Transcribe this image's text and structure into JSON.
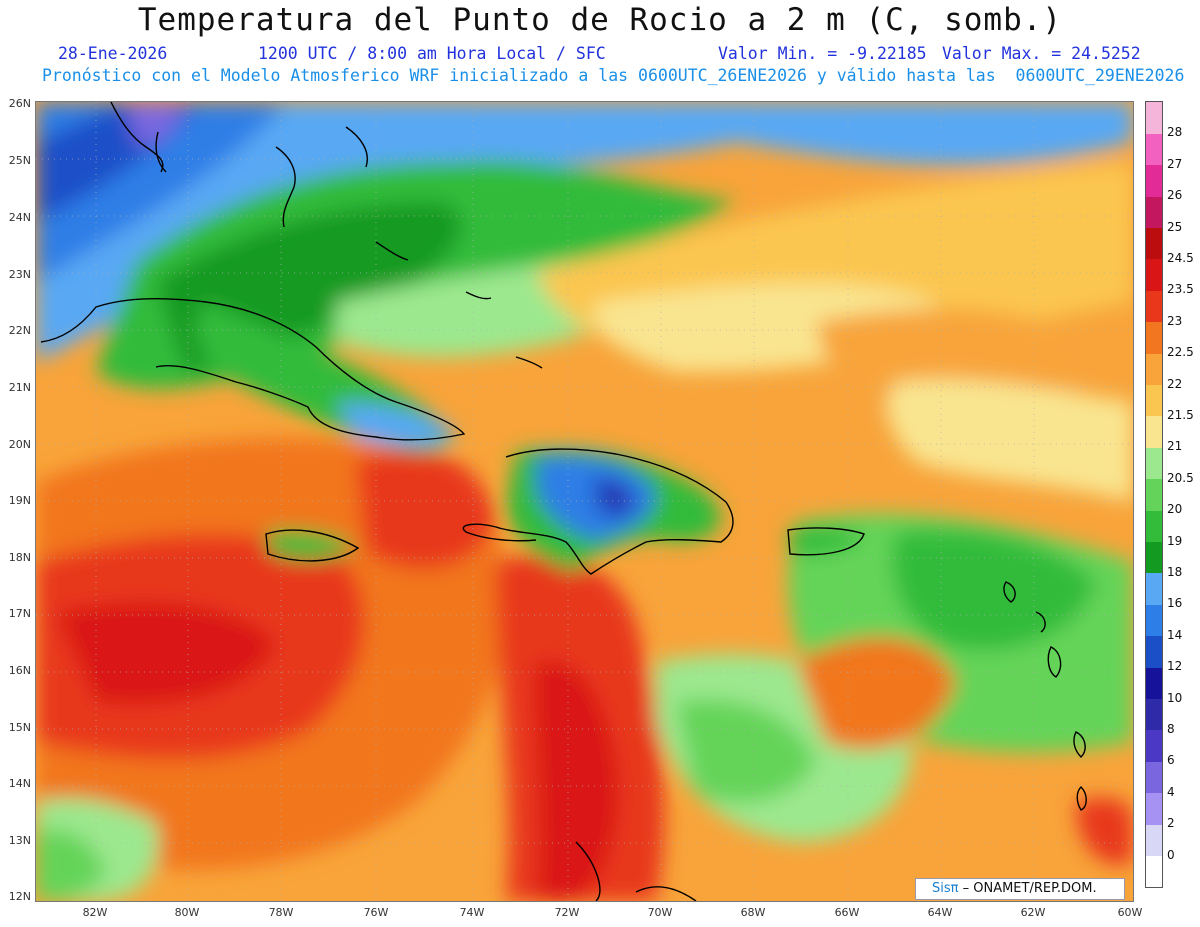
{
  "title": "Temperatura del Punto de Rocio a 2 m (C, somb.)",
  "date": "28-Ene-2026",
  "time_info": "1200 UTC / 8:00 am Hora Local / SFC",
  "min_value": "Valor Min. = -9.22185",
  "max_value": "Valor Max. = 24.5252",
  "model_info": "Pronóstico con el Modelo Atmosferico WRF inicializado a las 0600UTC_26ENE2026 y válido hasta las  0600UTC_29ENE2026",
  "logo": {
    "brand": "Sisπ",
    "text": "– ONAMET/REP.DOM."
  },
  "lat_labels": [
    "26N",
    "25N",
    "24N",
    "23N",
    "22N",
    "21N",
    "20N",
    "19N",
    "18N",
    "17N",
    "16N",
    "15N",
    "14N",
    "13N",
    "12N"
  ],
  "lon_labels": [
    "82W",
    "80W",
    "78W",
    "76W",
    "74W",
    "72W",
    "70W",
    "68W",
    "66W",
    "64W",
    "62W",
    "60W"
  ],
  "colorbar": {
    "levels": [
      "0",
      "2",
      "4",
      "6",
      "8",
      "10",
      "12",
      "14",
      "16",
      "18",
      "19",
      "20",
      "20.5",
      "21",
      "21.5",
      "22",
      "22.5",
      "23",
      "23.5",
      "24.5",
      "25",
      "26",
      "27",
      "28"
    ],
    "colors": [
      "#ffffff",
      "#d8d8f6",
      "#a692f2",
      "#7a67e0",
      "#4b39c6",
      "#2e2aa8",
      "#16139a",
      "#1a4fc8",
      "#2d7ee6",
      "#58a8f4",
      "#139a20",
      "#33bb3a",
      "#63d459",
      "#9ce88e",
      "#f9e590",
      "#fbc64f",
      "#f8a43a",
      "#f2761f",
      "#e8371a",
      "#da1516",
      "#bb0d0d",
      "#c31760",
      "#e32b97",
      "#f260c0",
      "#f5b4d9"
    ]
  }
}
